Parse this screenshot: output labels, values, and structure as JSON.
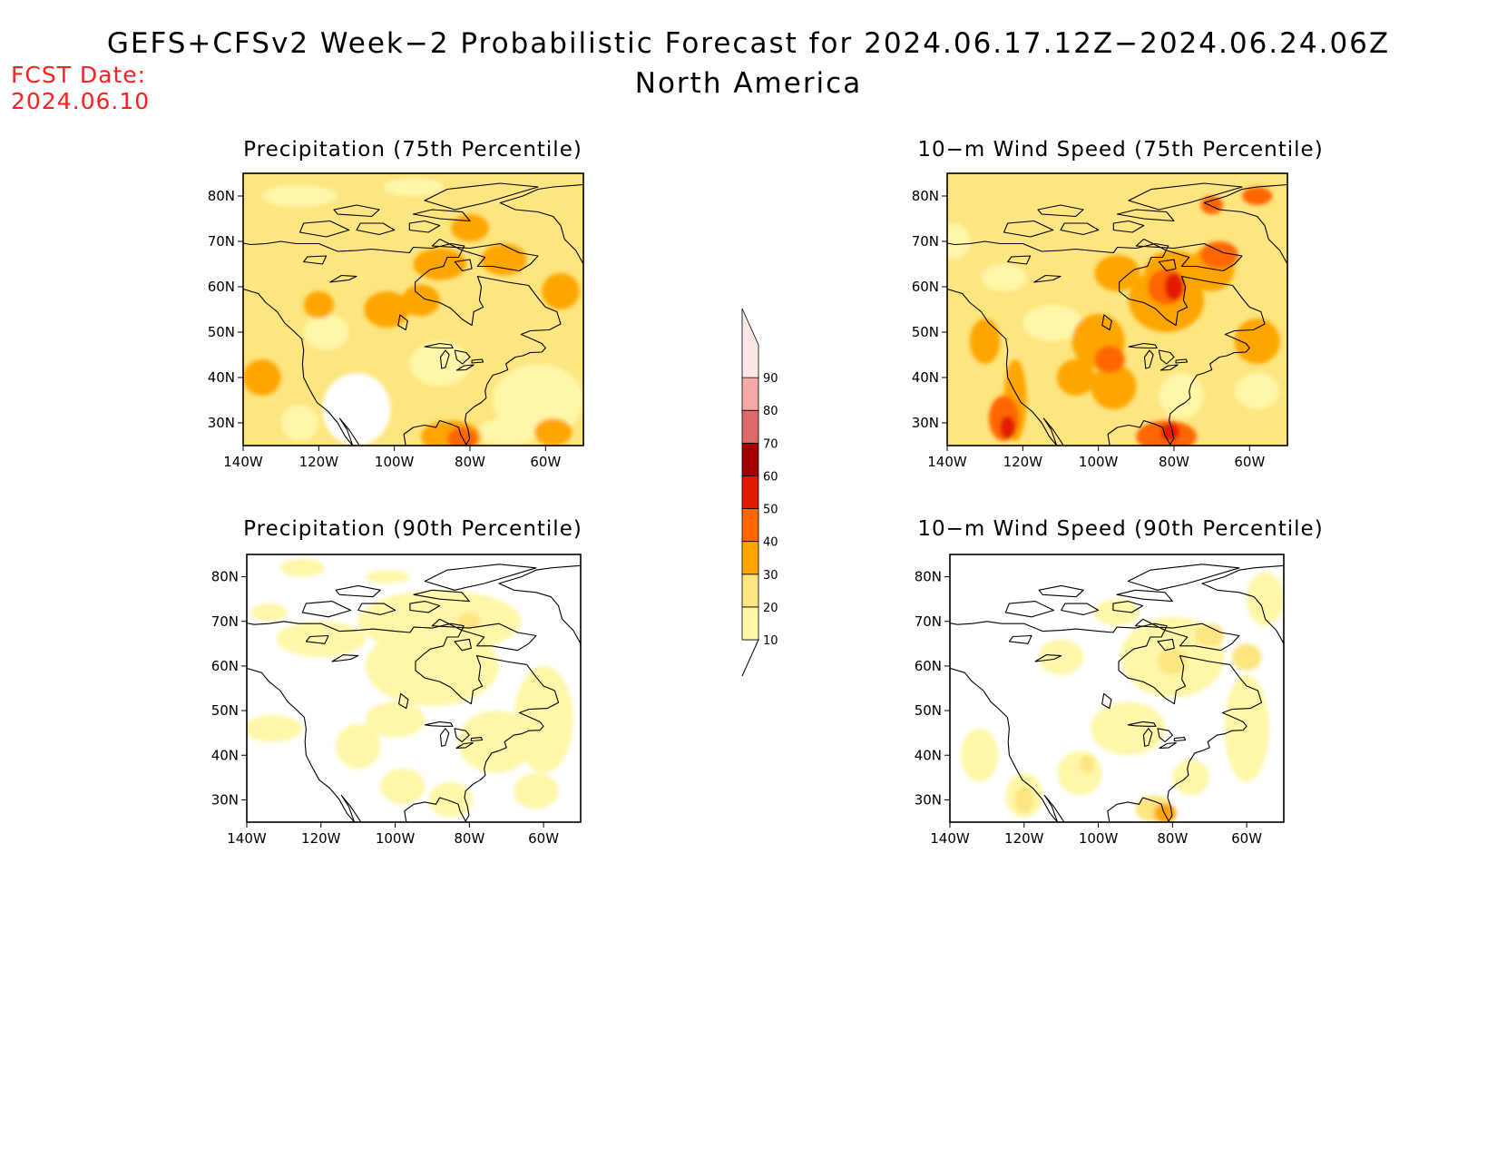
{
  "header": {
    "title_line1": "GEFS+CFSv2 Week−2 Probabilistic Forecast for 2024.06.17.12Z−2024.06.24.06Z",
    "title_line2": "North America",
    "fcst_label": "FCST Date:",
    "fcst_value": "2024.06.10"
  },
  "axes": {
    "lat_labels": [
      "80N",
      "70N",
      "60N",
      "50N",
      "40N",
      "30N"
    ],
    "lon_labels": [
      "140W",
      "120W",
      "100W",
      "80W",
      "60W"
    ],
    "lat_values": [
      80,
      70,
      60,
      50,
      40,
      30
    ],
    "lon_values": [
      -140,
      -120,
      -100,
      -80,
      -60
    ],
    "lat_range": [
      25,
      85
    ],
    "lon_range": [
      -140,
      -50
    ]
  },
  "colorbar": {
    "levels": [
      "10",
      "20",
      "30",
      "40",
      "50",
      "60",
      "70",
      "80",
      "90"
    ],
    "colors": [
      "#fff6a8",
      "#fde57f",
      "#fea500",
      "#ff6600",
      "#e21a00",
      "#a50000",
      "#e06a6a",
      "#f5a8a8",
      "#fde6e6"
    ]
  },
  "panels": [
    {
      "id": "precip-75",
      "title": "Precipitation (75th Percentile)"
    },
    {
      "id": "wind-75",
      "title": "10−m Wind Speed (75th Percentile)"
    },
    {
      "id": "precip-90",
      "title": "Precipitation (90th Percentile)"
    },
    {
      "id": "wind-90",
      "title": "10−m Wind Speed (90th Percentile)"
    }
  ]
}
